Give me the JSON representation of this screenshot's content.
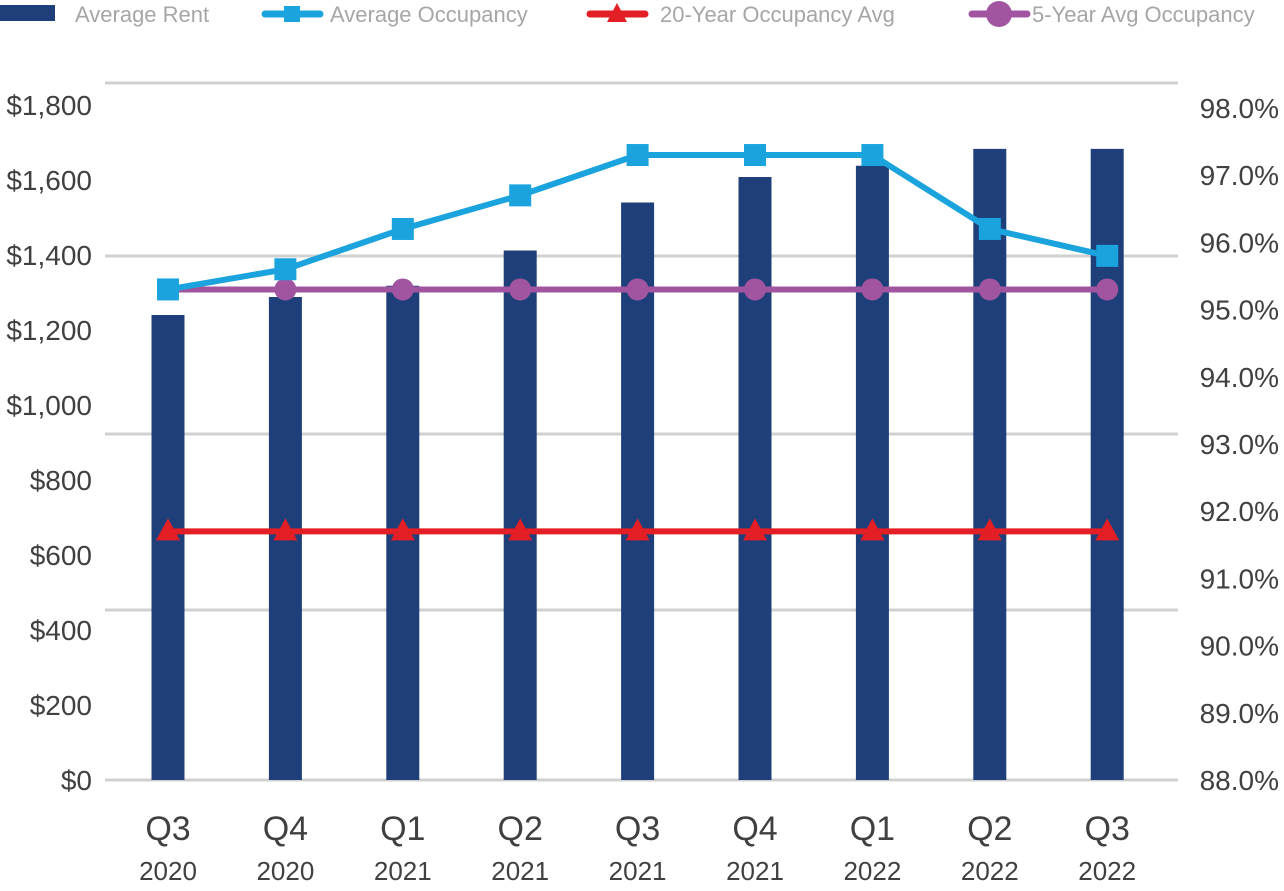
{
  "chart_data": {
    "type": "bar",
    "title": "",
    "categories": [
      {
        "quarter": "Q3",
        "year": "2020"
      },
      {
        "quarter": "Q4",
        "year": "2020"
      },
      {
        "quarter": "Q1",
        "year": "2021"
      },
      {
        "quarter": "Q2",
        "year": "2021"
      },
      {
        "quarter": "Q3",
        "year": "2021"
      },
      {
        "quarter": "Q4",
        "year": "2021"
      },
      {
        "quarter": "Q1",
        "year": "2022"
      },
      {
        "quarter": "Q2",
        "year": "2022"
      },
      {
        "quarter": "Q3",
        "year": "2022"
      }
    ],
    "left_axis": {
      "ylim": [
        0,
        1800
      ],
      "ticks": [
        0,
        200,
        400,
        600,
        800,
        1000,
        1200,
        1400,
        1600,
        1800
      ],
      "tick_labels": [
        "$0",
        "$200",
        "$400",
        "$600",
        "$800",
        "$1,000",
        "$1,200",
        "$1,400",
        "$1,600",
        "$1,800"
      ]
    },
    "right_axis": {
      "ylim": [
        88.0,
        98.0
      ],
      "ticks": [
        88,
        89,
        90,
        91,
        92,
        93,
        94,
        95,
        96,
        97,
        98
      ],
      "tick_labels": [
        "88.0%",
        "89.0%",
        "90.0%",
        "91.0%",
        "92.0%",
        "93.0%",
        "94.0%",
        "95.0%",
        "96.0%",
        "97.0%",
        "98.0%"
      ]
    },
    "series": [
      {
        "name": "Average Rent",
        "type": "bar",
        "axis": "left",
        "color": "#1f3f7a",
        "values": [
          1240,
          1288,
          1318,
          1412,
          1540,
          1608,
          1638,
          1683,
          1683
        ]
      },
      {
        "name": "Average Occupancy",
        "type": "line",
        "axis": "right",
        "marker": "square",
        "color": "#1aa3dd",
        "values": [
          95.3,
          95.6,
          96.2,
          96.7,
          97.3,
          97.3,
          97.3,
          96.2,
          95.8
        ]
      },
      {
        "name": "20-Year Occupancy Avg",
        "type": "line",
        "axis": "right",
        "marker": "triangle",
        "color": "#e31e24",
        "values": [
          91.7,
          91.7,
          91.7,
          91.7,
          91.7,
          91.7,
          91.7,
          91.7,
          91.7
        ]
      },
      {
        "name": "5-Year Avg Occupancy",
        "type": "line",
        "axis": "right",
        "marker": "circle",
        "color": "#a155a0",
        "values": [
          95.3,
          95.3,
          95.3,
          95.3,
          95.3,
          95.3,
          95.3,
          95.3,
          95.3
        ]
      }
    ],
    "legend_position": "top",
    "grid": true
  }
}
